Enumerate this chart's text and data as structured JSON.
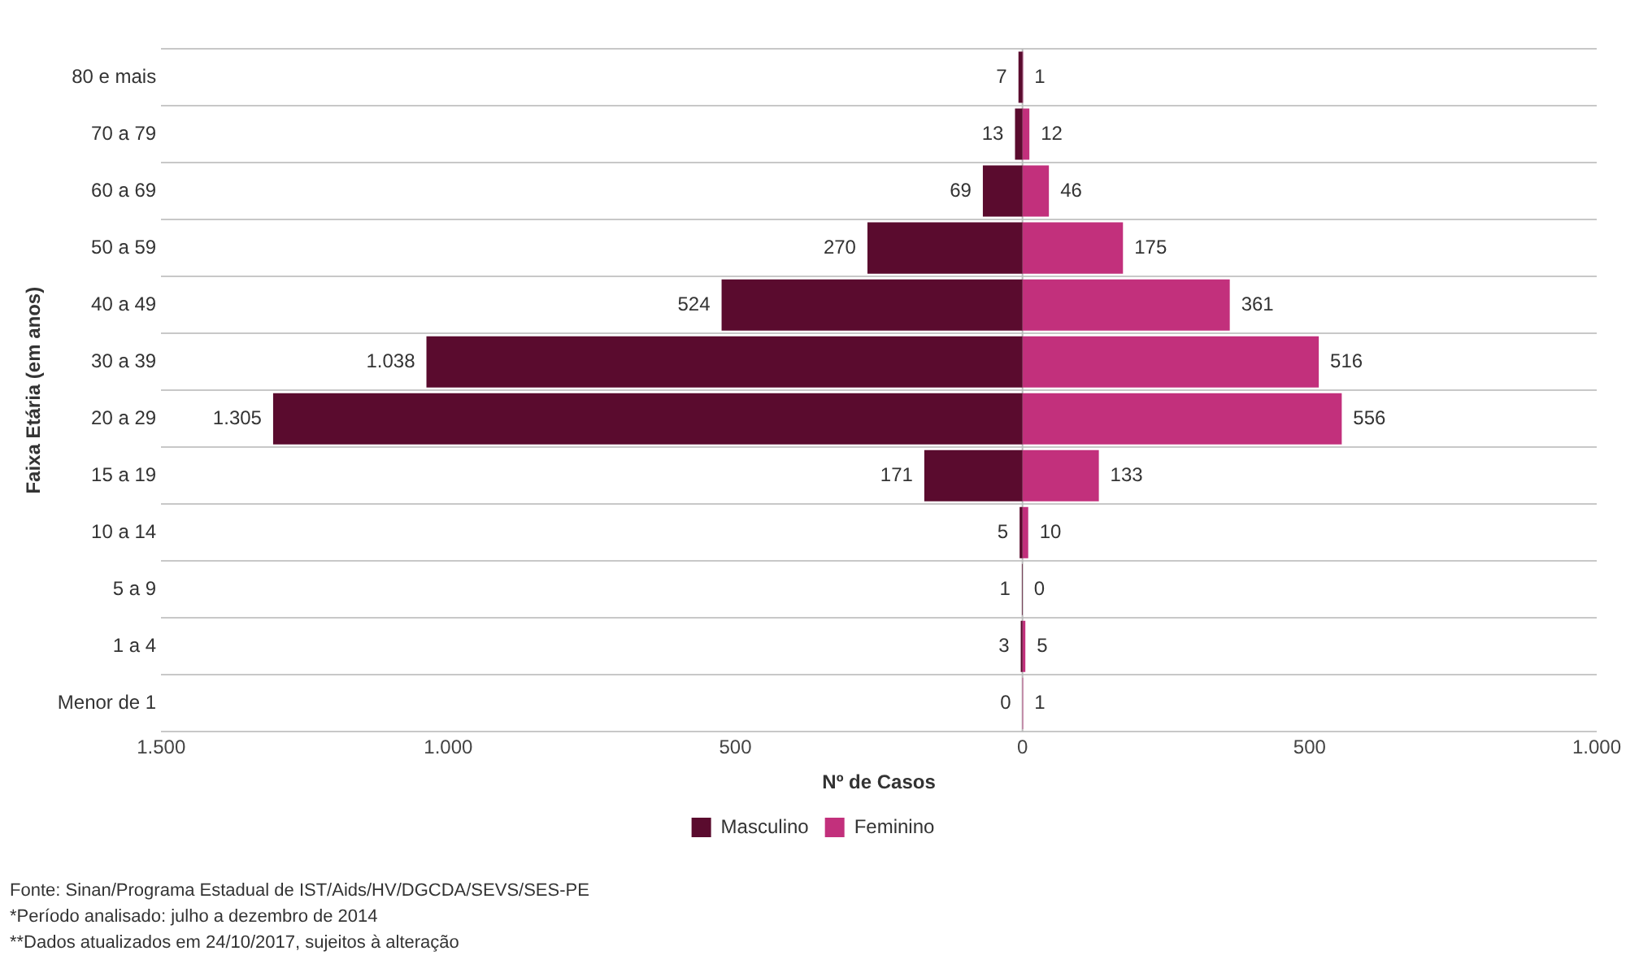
{
  "chart_data": {
    "type": "bar",
    "orientation": "horizontal",
    "xlabel": "Nº de Casos",
    "ylabel": "Faixa Etária (em anos)",
    "categories": [
      "80 e mais",
      "70 a 79",
      "60 a 69",
      "50 a 59",
      "40 a 49",
      "30 a 39",
      "20 a 29",
      "15 a 19",
      "10 a 14",
      "5 a 9",
      "1 a 4",
      "Menor de 1"
    ],
    "series": [
      {
        "name": "Masculino",
        "color": "#5a0b2e",
        "values": [
          7,
          13,
          69,
          270,
          524,
          1038,
          1305,
          171,
          5,
          1,
          3,
          0
        ],
        "base": [
          -7,
          -13,
          -69,
          -270,
          -524,
          -1038,
          -1305,
          -171,
          -5,
          -1,
          -3,
          null
        ],
        "value_labels": [
          "7",
          "13",
          "69",
          "270",
          "524",
          "1.038",
          "1.305",
          "171",
          "5",
          "1",
          "3",
          "0"
        ]
      },
      {
        "name": "Feminino",
        "color": "#c2307c",
        "values": [
          1,
          12,
          46,
          175,
          361,
          516,
          556,
          133,
          10,
          0,
          5,
          1
        ],
        "value_labels": [
          "1",
          "12",
          "46",
          "175",
          "361",
          "516",
          "556",
          "133",
          "10",
          "0",
          "5",
          "1"
        ]
      }
    ],
    "xlim": [
      -1500,
      1000
    ],
    "xticks": [
      {
        "value": -1500,
        "label": "1.500"
      },
      {
        "value": -1000,
        "label": "1.000"
      },
      {
        "value": -500,
        "label": "500"
      },
      0,
      500,
      {
        "value": 1000,
        "label": "1.000"
      }
    ],
    "grid": "y",
    "legend": "bottom",
    "annotations": [
      "Fonte: Sinan/Programa Estadual de IST/Aids/HV/DGCDA/SEVS/SES-PE",
      "*Período analisado: julho a dezembro de 2014",
      "**Dados atualizados em 24/10/2017, sujeitos à alteração"
    ]
  }
}
